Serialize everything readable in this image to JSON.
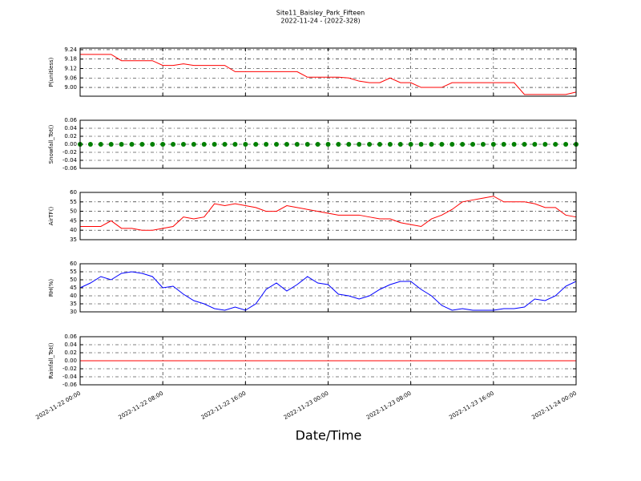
{
  "chart_data": [
    {
      "type": "line",
      "title": "Site11_Baisley_Park_Fifteen",
      "subtitle": "2022-11-24 - (2022-328)",
      "ylabel": "P(unitless)",
      "color": "#ff0000",
      "grid": true,
      "xlim": [
        "2022-11-22 00:00",
        "2022-11-24 00:00"
      ],
      "x": [
        "2022-11-22 00:00",
        "2022-11-22 01:00",
        "2022-11-22 02:00",
        "2022-11-22 03:00",
        "2022-11-22 04:00",
        "2022-11-22 05:00",
        "2022-11-22 06:00",
        "2022-11-22 07:00",
        "2022-11-22 08:00",
        "2022-11-22 09:00",
        "2022-11-22 10:00",
        "2022-11-22 11:00",
        "2022-11-22 12:00",
        "2022-11-22 13:00",
        "2022-11-22 14:00",
        "2022-11-22 15:00",
        "2022-11-22 16:00",
        "2022-11-22 17:00",
        "2022-11-22 18:00",
        "2022-11-22 19:00",
        "2022-11-22 20:00",
        "2022-11-22 21:00",
        "2022-11-22 22:00",
        "2022-11-22 23:00",
        "2022-11-23 00:00",
        "2022-11-23 01:00",
        "2022-11-23 02:00",
        "2022-11-23 03:00",
        "2022-11-23 04:00",
        "2022-11-23 05:00",
        "2022-11-23 06:00",
        "2022-11-23 07:00",
        "2022-11-23 08:00",
        "2022-11-23 09:00",
        "2022-11-23 10:00",
        "2022-11-23 11:00",
        "2022-11-23 12:00",
        "2022-11-23 13:00",
        "2022-11-23 14:00",
        "2022-11-23 15:00",
        "2022-11-23 16:00",
        "2022-11-23 17:00",
        "2022-11-23 18:00",
        "2022-11-23 19:00",
        "2022-11-23 20:00",
        "2022-11-23 21:00",
        "2022-11-23 22:00",
        "2022-11-23 23:00",
        "2022-11-24 00:00"
      ],
      "values": [
        9.21,
        9.21,
        9.21,
        9.21,
        9.17,
        9.17,
        9.17,
        9.17,
        9.14,
        9.14,
        9.15,
        9.14,
        9.14,
        9.14,
        9.14,
        9.1,
        9.1,
        9.1,
        9.1,
        9.1,
        9.1,
        9.1,
        9.065,
        9.065,
        9.065,
        9.065,
        9.06,
        9.04,
        9.03,
        9.03,
        9.06,
        9.03,
        9.03,
        9.0,
        9.0,
        9.0,
        9.03,
        9.03,
        9.03,
        9.03,
        9.03,
        9.03,
        9.03,
        8.955,
        8.955,
        8.955,
        8.955,
        8.955,
        8.97
      ],
      "ylim": [
        8.944,
        9.25
      ],
      "yticks": [
        {
          "value": 9,
          "label": "9.00"
        },
        9.06,
        9.12,
        9.18,
        9.24
      ]
    },
    {
      "type": "scatter",
      "ylabel": "Snowfall_Tot()",
      "color": "#008000",
      "grid": true,
      "xlim": [
        "2022-11-22 00:00",
        "2022-11-24 00:00"
      ],
      "x": [
        "2022-11-22 00:00",
        "2022-11-22 01:00",
        "2022-11-22 02:00",
        "2022-11-22 03:00",
        "2022-11-22 04:00",
        "2022-11-22 05:00",
        "2022-11-22 06:00",
        "2022-11-22 07:00",
        "2022-11-22 08:00",
        "2022-11-22 09:00",
        "2022-11-22 10:00",
        "2022-11-22 11:00",
        "2022-11-22 12:00",
        "2022-11-22 13:00",
        "2022-11-22 14:00",
        "2022-11-22 15:00",
        "2022-11-22 16:00",
        "2022-11-22 17:00",
        "2022-11-22 18:00",
        "2022-11-22 19:00",
        "2022-11-22 20:00",
        "2022-11-22 21:00",
        "2022-11-22 22:00",
        "2022-11-22 23:00",
        "2022-11-23 00:00",
        "2022-11-23 01:00",
        "2022-11-23 02:00",
        "2022-11-23 03:00",
        "2022-11-23 04:00",
        "2022-11-23 05:00",
        "2022-11-23 06:00",
        "2022-11-23 07:00",
        "2022-11-23 08:00",
        "2022-11-23 09:00",
        "2022-11-23 10:00",
        "2022-11-23 11:00",
        "2022-11-23 12:00",
        "2022-11-23 13:00",
        "2022-11-23 14:00",
        "2022-11-23 15:00",
        "2022-11-23 16:00",
        "2022-11-23 17:00",
        "2022-11-23 18:00",
        "2022-11-23 19:00",
        "2022-11-23 20:00",
        "2022-11-23 21:00",
        "2022-11-23 22:00",
        "2022-11-23 23:00",
        "2022-11-24 00:00"
      ],
      "values": [
        0,
        0,
        0,
        0,
        0,
        0,
        0,
        0,
        0,
        0,
        0,
        0,
        0,
        0,
        0,
        0,
        0,
        0,
        0,
        0,
        0,
        0,
        0,
        0,
        0,
        0,
        0,
        0,
        0,
        0,
        0,
        0,
        0,
        0,
        0,
        0,
        0,
        0,
        0,
        0,
        0,
        0,
        0,
        0,
        0,
        0,
        0,
        0,
        0
      ],
      "ylim": [
        -0.06,
        0.06
      ],
      "yticks": [
        -0.06,
        -0.04,
        -0.02,
        {
          "value": 0,
          "label": "0.00"
        },
        0.02,
        0.04,
        0.06
      ]
    },
    {
      "type": "line",
      "ylabel": "AirTF()",
      "color": "#ff0000",
      "grid": true,
      "xlim": [
        "2022-11-22 00:00",
        "2022-11-24 00:00"
      ],
      "x": [
        "2022-11-22 00:00",
        "2022-11-22 01:00",
        "2022-11-22 02:00",
        "2022-11-22 03:00",
        "2022-11-22 04:00",
        "2022-11-22 05:00",
        "2022-11-22 06:00",
        "2022-11-22 07:00",
        "2022-11-22 08:00",
        "2022-11-22 09:00",
        "2022-11-22 10:00",
        "2022-11-22 11:00",
        "2022-11-22 12:00",
        "2022-11-22 13:00",
        "2022-11-22 14:00",
        "2022-11-22 15:00",
        "2022-11-22 16:00",
        "2022-11-22 17:00",
        "2022-11-22 18:00",
        "2022-11-22 19:00",
        "2022-11-22 20:00",
        "2022-11-22 21:00",
        "2022-11-22 22:00",
        "2022-11-22 23:00",
        "2022-11-23 00:00",
        "2022-11-23 01:00",
        "2022-11-23 02:00",
        "2022-11-23 03:00",
        "2022-11-23 04:00",
        "2022-11-23 05:00",
        "2022-11-23 06:00",
        "2022-11-23 07:00",
        "2022-11-23 08:00",
        "2022-11-23 09:00",
        "2022-11-23 10:00",
        "2022-11-23 11:00",
        "2022-11-23 12:00",
        "2022-11-23 13:00",
        "2022-11-23 14:00",
        "2022-11-23 15:00",
        "2022-11-23 16:00",
        "2022-11-23 17:00",
        "2022-11-23 18:00",
        "2022-11-23 19:00",
        "2022-11-23 20:00",
        "2022-11-23 21:00",
        "2022-11-23 22:00",
        "2022-11-23 23:00",
        "2022-11-24 00:00"
      ],
      "values": [
        42,
        42,
        42,
        45,
        41,
        41,
        40,
        40,
        41,
        42,
        47,
        46,
        47,
        54,
        53,
        54,
        53,
        52,
        50,
        50,
        53,
        52,
        51,
        50,
        49,
        48,
        48,
        48,
        47,
        46,
        46,
        44,
        43,
        42,
        46,
        48,
        51,
        55,
        56,
        57,
        58,
        55,
        55,
        55,
        54,
        52,
        52,
        48,
        47
      ],
      "ylim": [
        35,
        60
      ],
      "yticks": [
        35,
        40,
        45,
        50,
        55,
        60
      ]
    },
    {
      "type": "line",
      "ylabel": "RH(%)",
      "color": "#0000ff",
      "grid": true,
      "xlim": [
        "2022-11-22 00:00",
        "2022-11-24 00:00"
      ],
      "x": [
        "2022-11-22 00:00",
        "2022-11-22 01:00",
        "2022-11-22 02:00",
        "2022-11-22 03:00",
        "2022-11-22 04:00",
        "2022-11-22 05:00",
        "2022-11-22 06:00",
        "2022-11-22 07:00",
        "2022-11-22 08:00",
        "2022-11-22 09:00",
        "2022-11-22 10:00",
        "2022-11-22 11:00",
        "2022-11-22 12:00",
        "2022-11-22 13:00",
        "2022-11-22 14:00",
        "2022-11-22 15:00",
        "2022-11-22 16:00",
        "2022-11-22 17:00",
        "2022-11-22 18:00",
        "2022-11-22 19:00",
        "2022-11-22 20:00",
        "2022-11-22 21:00",
        "2022-11-22 22:00",
        "2022-11-22 23:00",
        "2022-11-23 00:00",
        "2022-11-23 01:00",
        "2022-11-23 02:00",
        "2022-11-23 03:00",
        "2022-11-23 04:00",
        "2022-11-23 05:00",
        "2022-11-23 06:00",
        "2022-11-23 07:00",
        "2022-11-23 08:00",
        "2022-11-23 09:00",
        "2022-11-23 10:00",
        "2022-11-23 11:00",
        "2022-11-23 12:00",
        "2022-11-23 13:00",
        "2022-11-23 14:00",
        "2022-11-23 15:00",
        "2022-11-23 16:00",
        "2022-11-23 17:00",
        "2022-11-23 18:00",
        "2022-11-23 19:00",
        "2022-11-23 20:00",
        "2022-11-23 21:00",
        "2022-11-23 22:00",
        "2022-11-23 23:00",
        "2022-11-24 00:00"
      ],
      "values": [
        45,
        48,
        52,
        50,
        54,
        55,
        54,
        52,
        45,
        46,
        41,
        37,
        35,
        32,
        31,
        33,
        31,
        35,
        44,
        48,
        43,
        47,
        52,
        48,
        47,
        41,
        40,
        38,
        40,
        44,
        47,
        49,
        49,
        44,
        40,
        34,
        31,
        32,
        31,
        31,
        31,
        32,
        32,
        33,
        38,
        37,
        40,
        46,
        49
      ],
      "ylim": [
        30,
        60
      ],
      "yticks": [
        30,
        35,
        40,
        45,
        50,
        55,
        60
      ]
    },
    {
      "type": "line",
      "ylabel": "Rainfall_Tot()",
      "xlabel": "Date/Time",
      "color": "#ff0000",
      "grid": true,
      "xlim": [
        "2022-11-22 00:00",
        "2022-11-24 00:00"
      ],
      "xticks": [
        "2022-11-22 00:00",
        "2022-11-22 08:00",
        "2022-11-22 16:00",
        "2022-11-23 00:00",
        "2022-11-23 08:00",
        "2022-11-23 16:00",
        "2022-11-24 00:00"
      ],
      "x": [
        "2022-11-22 00:00",
        "2022-11-22 01:00",
        "2022-11-22 02:00",
        "2022-11-22 03:00",
        "2022-11-22 04:00",
        "2022-11-22 05:00",
        "2022-11-22 06:00",
        "2022-11-22 07:00",
        "2022-11-22 08:00",
        "2022-11-22 09:00",
        "2022-11-22 10:00",
        "2022-11-22 11:00",
        "2022-11-22 12:00",
        "2022-11-22 13:00",
        "2022-11-22 14:00",
        "2022-11-22 15:00",
        "2022-11-22 16:00",
        "2022-11-22 17:00",
        "2022-11-22 18:00",
        "2022-11-22 19:00",
        "2022-11-22 20:00",
        "2022-11-22 21:00",
        "2022-11-22 22:00",
        "2022-11-22 23:00",
        "2022-11-23 00:00",
        "2022-11-23 01:00",
        "2022-11-23 02:00",
        "2022-11-23 03:00",
        "2022-11-23 04:00",
        "2022-11-23 05:00",
        "2022-11-23 06:00",
        "2022-11-23 07:00",
        "2022-11-23 08:00",
        "2022-11-23 09:00",
        "2022-11-23 10:00",
        "2022-11-23 11:00",
        "2022-11-23 12:00",
        "2022-11-23 13:00",
        "2022-11-23 14:00",
        "2022-11-23 15:00",
        "2022-11-23 16:00",
        "2022-11-23 17:00",
        "2022-11-23 18:00",
        "2022-11-23 19:00",
        "2022-11-23 20:00",
        "2022-11-23 21:00",
        "2022-11-23 22:00",
        "2022-11-23 23:00",
        "2022-11-24 00:00"
      ],
      "values": [
        0,
        0,
        0,
        0,
        0,
        0,
        0,
        0,
        0,
        0,
        0,
        0,
        0,
        0,
        0,
        0,
        0,
        0,
        0,
        0,
        0,
        0,
        0,
        0,
        0,
        0,
        0,
        0,
        0,
        0,
        0,
        0,
        0,
        0,
        0,
        0,
        0,
        0,
        0,
        0,
        0,
        0,
        0,
        0,
        0,
        0,
        0,
        0,
        0
      ],
      "ylim": [
        -0.06,
        0.06
      ],
      "yticks": [
        -0.06,
        -0.04,
        -0.02,
        {
          "value": 0,
          "label": "0.00"
        },
        0.02,
        0.04,
        0.06
      ]
    }
  ]
}
